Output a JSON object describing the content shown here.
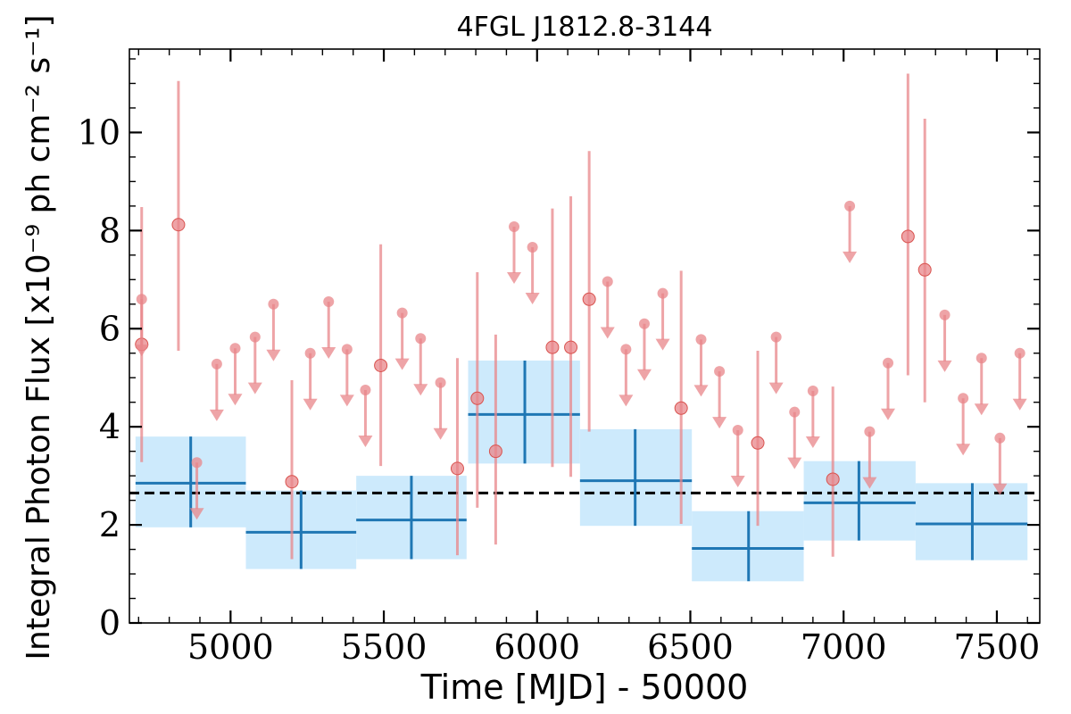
{
  "chart_data": {
    "type": "scatter",
    "title": "4FGL J1812.8-3144",
    "xlabel": "Time [MJD] - 50000",
    "ylabel": "Integral Photon Flux [x10⁻⁹ ph cm⁻² s⁻¹]",
    "xlim": [
      4670,
      7640
    ],
    "ylim": [
      0,
      11.7
    ],
    "xticks": [
      5000,
      5500,
      6000,
      6500,
      7000,
      7500
    ],
    "yticks": [
      0,
      2,
      4,
      6,
      8,
      10
    ],
    "grid": false,
    "mean_flux": 2.65,
    "colors": {
      "short_bins": "#e8868a",
      "long_bins": "#1f77b4",
      "long_bins_fill": "#cdeafc",
      "mean_line": "#000000"
    },
    "long_bins": [
      {
        "x": 4870,
        "x_lo": 4690,
        "x_hi": 5050,
        "y": 2.85,
        "y_lo": 1.95,
        "y_hi": 3.8
      },
      {
        "x": 5230,
        "x_lo": 5050,
        "x_hi": 5410,
        "y": 1.85,
        "y_lo": 1.1,
        "y_hi": 2.7
      },
      {
        "x": 5590,
        "x_lo": 5410,
        "x_hi": 5770,
        "y": 2.1,
        "y_lo": 1.3,
        "y_hi": 3.0
      },
      {
        "x": 5960,
        "x_lo": 5775,
        "x_hi": 6140,
        "y": 4.25,
        "y_lo": 3.25,
        "y_hi": 5.35
      },
      {
        "x": 6320,
        "x_lo": 6140,
        "x_hi": 6505,
        "y": 2.9,
        "y_lo": 1.98,
        "y_hi": 3.95
      },
      {
        "x": 6690,
        "x_lo": 6505,
        "x_hi": 6870,
        "y": 1.52,
        "y_lo": 0.85,
        "y_hi": 2.28
      },
      {
        "x": 7050,
        "x_lo": 6870,
        "x_hi": 7235,
        "y": 2.45,
        "y_lo": 1.68,
        "y_hi": 3.3
      },
      {
        "x": 7420,
        "x_lo": 7235,
        "x_hi": 7600,
        "y": 2.02,
        "y_lo": 1.28,
        "y_hi": 2.85
      }
    ],
    "short_bin_points": [
      {
        "x": 4710,
        "y": 5.68,
        "y_lo": 3.28,
        "y_hi": 8.48
      },
      {
        "x": 4830,
        "y": 8.12,
        "y_lo": 5.55,
        "y_hi": 11.05
      },
      {
        "x": 5200,
        "y": 2.88,
        "y_lo": 1.3,
        "y_hi": 4.95
      },
      {
        "x": 5490,
        "y": 5.25,
        "y_lo": 3.2,
        "y_hi": 7.72
      },
      {
        "x": 5740,
        "y": 3.15,
        "y_lo": 1.38,
        "y_hi": 5.4
      },
      {
        "x": 5805,
        "y": 4.58,
        "y_lo": 2.35,
        "y_hi": 7.15
      },
      {
        "x": 5865,
        "y": 3.5,
        "y_lo": 1.6,
        "y_hi": 5.88
      },
      {
        "x": 6050,
        "y": 5.62,
        "y_lo": 3.18,
        "y_hi": 8.45
      },
      {
        "x": 6110,
        "y": 5.62,
        "y_lo": 2.98,
        "y_hi": 8.7
      },
      {
        "x": 6170,
        "y": 6.6,
        "y_lo": 3.9,
        "y_hi": 9.62
      },
      {
        "x": 6470,
        "y": 4.38,
        "y_lo": 2.02,
        "y_hi": 7.18
      },
      {
        "x": 6720,
        "y": 3.67,
        "y_lo": 1.98,
        "y_hi": 5.55
      },
      {
        "x": 6965,
        "y": 2.93,
        "y_lo": 1.35,
        "y_hi": 4.82
      },
      {
        "x": 7210,
        "y": 7.88,
        "y_lo": 5.05,
        "y_hi": 11.2
      },
      {
        "x": 7265,
        "y": 7.2,
        "y_lo": 4.5,
        "y_hi": 10.28
      }
    ],
    "upper_limits": [
      {
        "x": 4710,
        "y": 6.6
      },
      {
        "x": 4890,
        "y": 3.27
      },
      {
        "x": 4955,
        "y": 5.28
      },
      {
        "x": 5015,
        "y": 5.6
      },
      {
        "x": 5080,
        "y": 5.83
      },
      {
        "x": 5140,
        "y": 6.5
      },
      {
        "x": 5260,
        "y": 5.5
      },
      {
        "x": 5320,
        "y": 6.55
      },
      {
        "x": 5380,
        "y": 5.58
      },
      {
        "x": 5440,
        "y": 4.75
      },
      {
        "x": 5560,
        "y": 6.32
      },
      {
        "x": 5620,
        "y": 5.8
      },
      {
        "x": 5685,
        "y": 4.9
      },
      {
        "x": 5925,
        "y": 8.08
      },
      {
        "x": 5985,
        "y": 7.66
      },
      {
        "x": 6230,
        "y": 6.96
      },
      {
        "x": 6290,
        "y": 5.58
      },
      {
        "x": 6350,
        "y": 6.1
      },
      {
        "x": 6410,
        "y": 6.72
      },
      {
        "x": 6535,
        "y": 5.78
      },
      {
        "x": 6595,
        "y": 5.13
      },
      {
        "x": 6655,
        "y": 3.93
      },
      {
        "x": 6780,
        "y": 5.83
      },
      {
        "x": 6840,
        "y": 4.3
      },
      {
        "x": 6900,
        "y": 4.73
      },
      {
        "x": 7020,
        "y": 8.5
      },
      {
        "x": 7085,
        "y": 3.9
      },
      {
        "x": 7145,
        "y": 5.3
      },
      {
        "x": 7330,
        "y": 6.28
      },
      {
        "x": 7390,
        "y": 4.58
      },
      {
        "x": 7450,
        "y": 5.4
      },
      {
        "x": 7510,
        "y": 3.77
      },
      {
        "x": 7575,
        "y": 5.5
      }
    ]
  }
}
